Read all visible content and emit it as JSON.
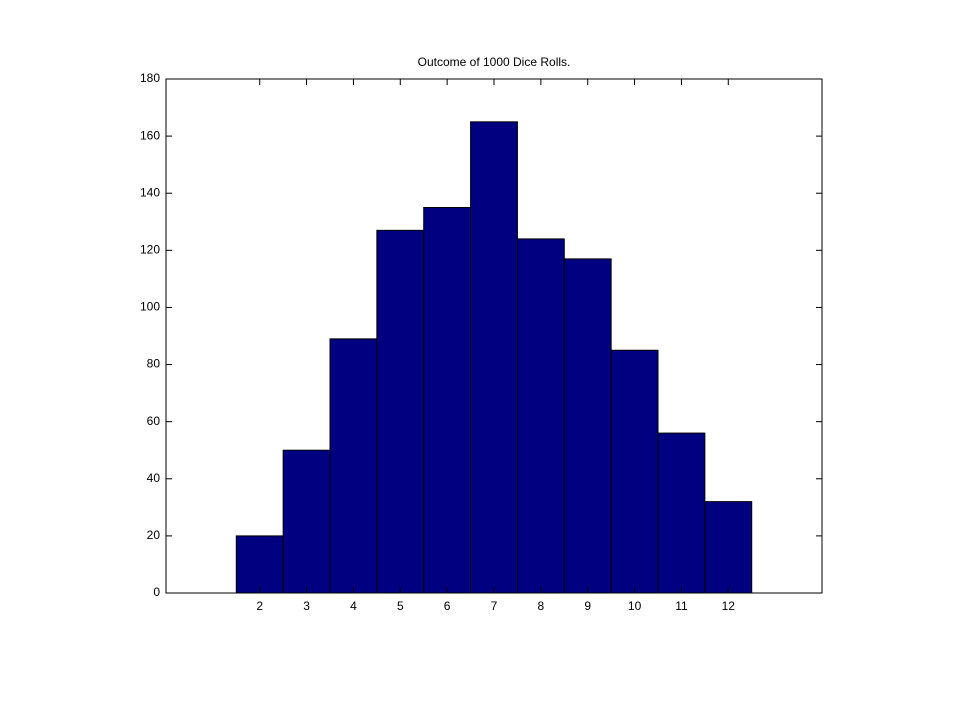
{
  "chart_data": {
    "type": "histogram",
    "title": "Outcome of 1000 Dice Rolls.",
    "bins": [
      1.5,
      2.5,
      3.5,
      4.5,
      5.5,
      6.5,
      7.5,
      8.5,
      9.5,
      10.5,
      11.5,
      12.5
    ],
    "values": [
      20,
      50,
      89,
      127,
      135,
      165,
      124,
      117,
      85,
      56,
      32
    ],
    "color": "#000080",
    "xlim": [
      0,
      14
    ],
    "xticks": [
      2,
      3,
      4,
      5,
      6,
      7,
      8,
      9,
      10,
      11,
      12
    ],
    "ylim": [
      0,
      180
    ],
    "yticks": [
      0,
      20,
      40,
      60,
      80,
      100,
      120,
      140,
      160,
      180
    ],
    "grid": false
  }
}
